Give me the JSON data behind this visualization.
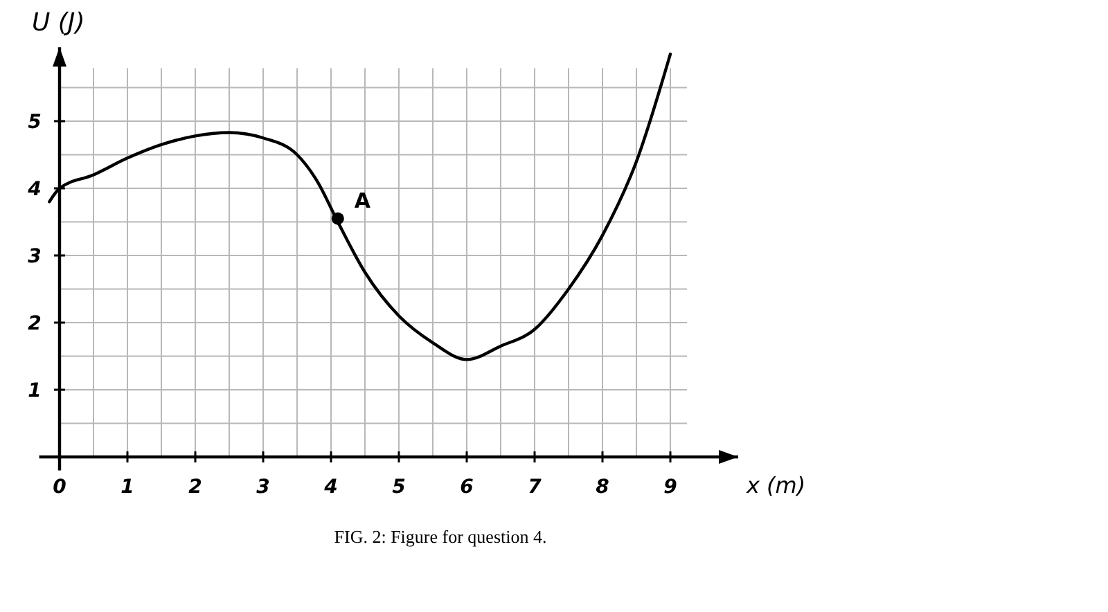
{
  "chart_data": {
    "type": "line",
    "xlabel": "x (m)",
    "ylabel": "U (J)",
    "x": [
      -0.15,
      0,
      0.5,
      1,
      1.5,
      2,
      2.5,
      3,
      3.5,
      3.8,
      4.1,
      4.5,
      5,
      5.5,
      6,
      6.5,
      7,
      7.5,
      8,
      8.5,
      9
    ],
    "series": [
      {
        "color": "#000000",
        "marker": "none",
        "values": [
          3.8,
          4,
          4.2,
          4.45,
          4.65,
          4.78,
          4.83,
          4.75,
          4.5,
          4.1,
          3.5,
          2.75,
          2.1,
          1.7,
          1.45,
          1.65,
          1.9,
          2.5,
          3.3,
          4.4,
          6.0
        ]
      },
      {
        "type": "scatter",
        "color": "#000000",
        "marker": "circle",
        "x": [
          4.1
        ],
        "values": [
          3.55
        ]
      }
    ],
    "annotations": [
      {
        "text": "A",
        "x": 4.1,
        "y": 3.55
      },
      "FIG. 2: Figure for question 4."
    ],
    "xlim": [
      -0.3,
      10
    ],
    "ylim": [
      -0.2,
      6.1
    ],
    "xticks": [
      0,
      {
        "value": 0.5,
        "label": null
      },
      1,
      {
        "value": 1.5,
        "label": null
      },
      2,
      {
        "value": 2.5,
        "label": null
      },
      3,
      {
        "value": 3.5,
        "label": null
      },
      4,
      {
        "value": 4.5,
        "label": null
      },
      5,
      {
        "value": 5.5,
        "label": null
      },
      6,
      {
        "value": 6.5,
        "label": null
      },
      7,
      {
        "value": 7.5,
        "label": null
      },
      8,
      {
        "value": 8.5,
        "label": null
      },
      9
    ],
    "yticks": [
      {
        "value": 0,
        "label": null
      },
      {
        "value": 0.5,
        "label": null
      },
      1,
      {
        "value": 1.5,
        "label": null
      },
      2,
      {
        "value": 2.5,
        "label": null
      },
      3,
      {
        "value": 3.5,
        "label": null
      },
      4,
      {
        "value": 4.5,
        "label": null
      },
      5,
      {
        "value": 5.5,
        "label": null
      }
    ],
    "grid": true
  }
}
